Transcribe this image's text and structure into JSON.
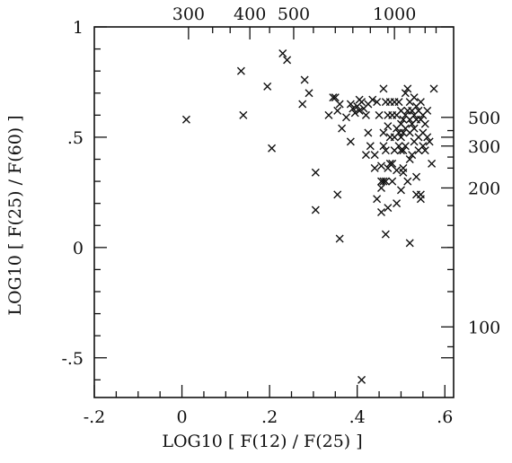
{
  "chart_data": {
    "type": "scatter",
    "title": "",
    "xlabel": "LOG10 [ F(12) / F(25) ]",
    "ylabel": "LOG10 [ F(25) / F(60) ]",
    "xlim": [
      -0.2,
      0.62
    ],
    "ylim": [
      -0.68,
      1.0
    ],
    "x_ticks": [
      -0.2,
      0,
      0.2,
      0.4,
      0.6
    ],
    "x_tick_labels": [
      "-.2",
      "0",
      ".2",
      ".4",
      ".6"
    ],
    "y_ticks": [
      -0.5,
      0,
      0.5,
      1
    ],
    "y_tick_labels": [
      "-.5",
      "0",
      ".5",
      "1"
    ],
    "top_axis": {
      "labels": [
        "300",
        "400",
        "500",
        "1000"
      ],
      "at_x": [
        0.015,
        0.155,
        0.255,
        0.485
      ]
    },
    "right_axis": {
      "labels": [
        "500",
        "300",
        "200",
        "100"
      ],
      "at_y": [
        0.59,
        0.46,
        0.27,
        -0.36
      ]
    },
    "marker": "x",
    "series": [
      {
        "x": [
          0.01,
          0.135,
          0.14,
          0.195,
          0.205,
          0.23,
          0.24,
          0.275,
          0.28,
          0.29,
          0.305,
          0.305,
          0.335,
          0.345,
          0.35,
          0.355,
          0.355,
          0.36,
          0.36,
          0.365,
          0.375,
          0.385,
          0.385,
          0.39,
          0.395,
          0.4,
          0.405,
          0.405,
          0.41,
          0.415,
          0.42,
          0.42,
          0.425,
          0.425,
          0.43,
          0.435,
          0.44,
          0.44,
          0.445,
          0.45,
          0.455,
          0.455,
          0.46,
          0.46,
          0.46,
          0.465,
          0.465,
          0.465,
          0.47,
          0.47,
          0.47,
          0.47,
          0.475,
          0.475,
          0.48,
          0.48,
          0.48,
          0.485,
          0.485,
          0.485,
          0.49,
          0.49,
          0.49,
          0.495,
          0.495,
          0.495,
          0.5,
          0.5,
          0.5,
          0.5,
          0.505,
          0.505,
          0.505,
          0.51,
          0.51,
          0.51,
          0.51,
          0.515,
          0.515,
          0.515,
          0.52,
          0.52,
          0.52,
          0.52,
          0.525,
          0.525,
          0.525,
          0.53,
          0.53,
          0.53,
          0.53,
          0.535,
          0.535,
          0.535,
          0.54,
          0.54,
          0.54,
          0.545,
          0.545,
          0.545,
          0.55,
          0.55,
          0.55,
          0.555,
          0.555,
          0.56,
          0.56,
          0.565,
          0.57,
          0.575,
          0.49,
          0.5,
          0.505,
          0.535,
          0.545,
          0.465,
          0.475,
          0.455,
          0.445,
          0.455,
          0.52,
          0.41,
          0.505,
          0.46
        ],
        "y": [
          0.58,
          0.8,
          0.6,
          0.73,
          0.45,
          0.88,
          0.85,
          0.65,
          0.76,
          0.7,
          0.34,
          0.17,
          0.6,
          0.68,
          0.68,
          0.24,
          0.62,
          0.65,
          0.04,
          0.54,
          0.59,
          0.65,
          0.48,
          0.63,
          0.61,
          0.64,
          0.67,
          0.62,
          0.66,
          0.63,
          0.6,
          0.42,
          0.65,
          0.52,
          0.46,
          0.67,
          0.36,
          0.42,
          0.66,
          0.6,
          0.27,
          0.37,
          0.72,
          0.52,
          0.46,
          0.66,
          0.3,
          0.44,
          0.6,
          0.55,
          0.36,
          0.18,
          0.66,
          0.5,
          0.6,
          0.38,
          0.3,
          0.66,
          0.5,
          0.44,
          0.6,
          0.54,
          0.35,
          0.66,
          0.52,
          0.46,
          0.62,
          0.56,
          0.5,
          0.44,
          0.58,
          0.52,
          0.34,
          0.7,
          0.6,
          0.54,
          0.46,
          0.72,
          0.62,
          0.3,
          0.66,
          0.58,
          0.52,
          0.4,
          0.62,
          0.56,
          0.42,
          0.68,
          0.6,
          0.54,
          0.48,
          0.64,
          0.58,
          0.32,
          0.62,
          0.5,
          0.44,
          0.66,
          0.58,
          0.24,
          0.6,
          0.52,
          0.46,
          0.56,
          0.44,
          0.62,
          0.5,
          0.48,
          0.38,
          0.72,
          0.2,
          0.26,
          0.36,
          0.24,
          0.22,
          0.06,
          0.38,
          0.3,
          0.22,
          0.16,
          0.02,
          -0.6,
          0.44,
          0.3
        ]
      }
    ]
  }
}
